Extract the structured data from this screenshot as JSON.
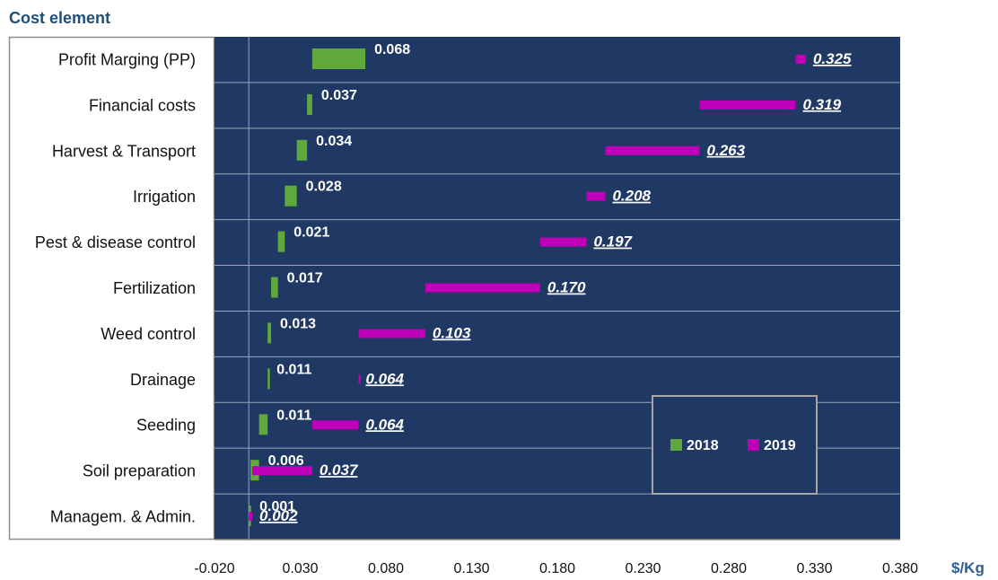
{
  "chart_data": {
    "type": "bar",
    "orientation": "horizontal",
    "style": "waterfall",
    "title": "Cost element",
    "xlabel": "$/Kg",
    "xlim": [
      -0.02,
      0.38
    ],
    "x_ticks": [
      "-0.020",
      "0.030",
      "0.080",
      "0.130",
      "0.180",
      "0.230",
      "0.280",
      "0.330",
      "0.380"
    ],
    "categories": [
      "Profit Marging (PP)",
      "Financial costs",
      "Harvest  & Transport",
      "Irrigation",
      "Pest & disease control",
      "Fertilization",
      "Weed control",
      "Drainage",
      "Seeding",
      "Soil preparation",
      "Managem. & Admin."
    ],
    "series": [
      {
        "name": "2018",
        "color": "#5fa83a",
        "values": [
          0.068,
          0.037,
          0.034,
          0.028,
          0.021,
          0.017,
          0.013,
          0.011,
          0.011,
          0.006,
          0.001
        ],
        "labels": [
          "0.068",
          "0.037",
          "0.034",
          "0.028",
          "0.021",
          "0.017",
          "0.013",
          "0.011",
          "0.011",
          "0.006",
          "0.001"
        ]
      },
      {
        "name": "2019",
        "color": "#c000b8",
        "values": [
          0.325,
          0.319,
          0.263,
          0.208,
          0.197,
          0.17,
          0.103,
          0.064,
          0.064,
          0.037,
          0.002
        ],
        "labels": [
          "0.325",
          "0.319",
          "0.263",
          "0.208",
          "0.197",
          "0.170",
          "0.103",
          "0.064",
          "0.064",
          "0.037",
          "0.002"
        ]
      }
    ],
    "legend": {
      "position": "bottom-right",
      "entries": [
        "2018",
        "2019"
      ]
    },
    "colors": {
      "plot_background": "#1f3864",
      "gridline": "#9aa6bb"
    },
    "grid": true
  }
}
